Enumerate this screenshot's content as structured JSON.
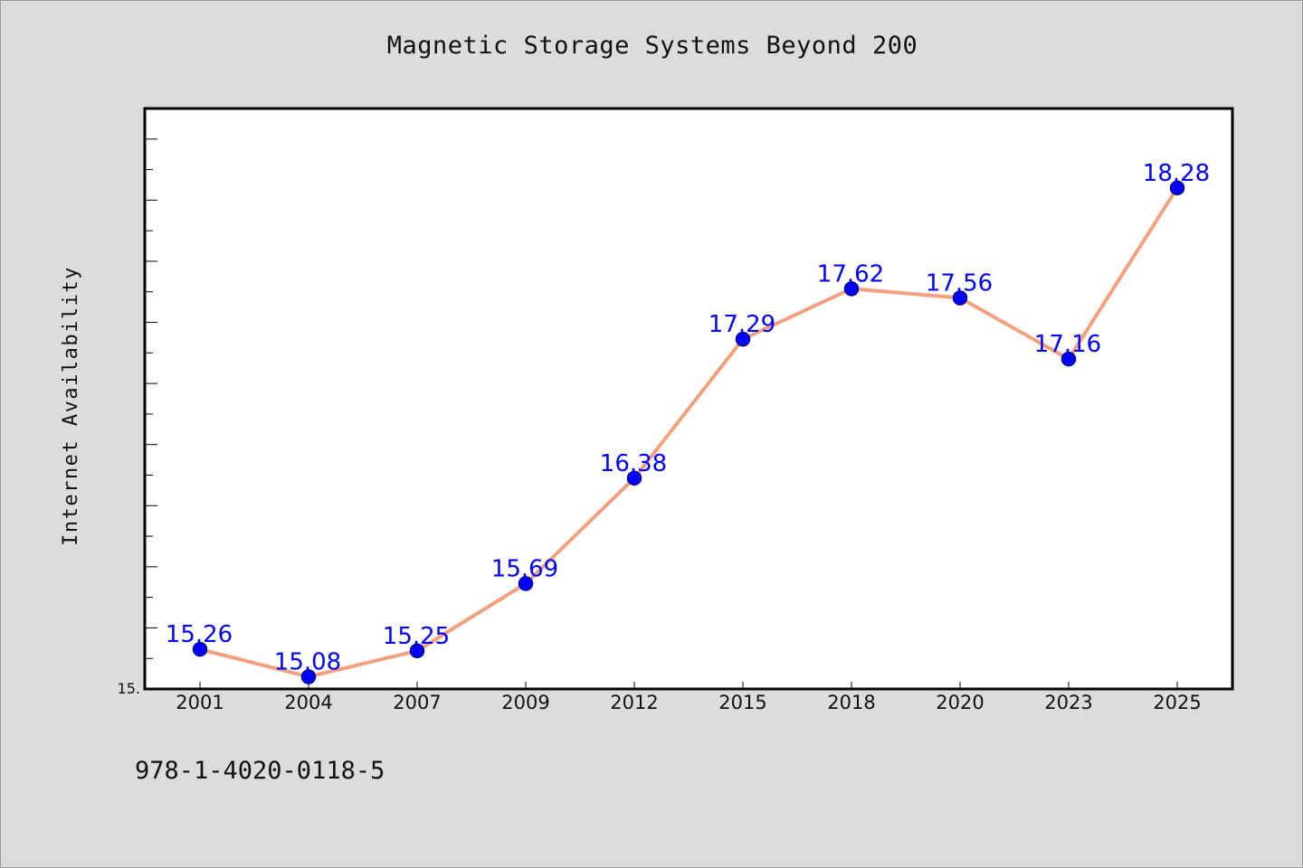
{
  "chart_data": {
    "type": "line",
    "title": "Magnetic Storage Systems Beyond 200",
    "ylabel": "Internet Availability",
    "xlabel": "",
    "categories": [
      "2001",
      "2004",
      "2007",
      "2009",
      "2012",
      "2015",
      "2018",
      "2020",
      "2023",
      "2025"
    ],
    "values": [
      15.26,
      15.08,
      15.25,
      15.69,
      16.38,
      17.29,
      17.62,
      17.56,
      17.16,
      18.28
    ],
    "data_labels": [
      "15.26",
      "15.08",
      "15.25",
      "15.69",
      "16.38",
      "17.29",
      "17.62",
      "17.56",
      "17.16",
      "18.28"
    ],
    "ylim": [
      15.0,
      18.8
    ],
    "y_tick_label": "15.",
    "show_markers": true,
    "grid": false,
    "legend": "none",
    "colors": {
      "line": "#f4a07e",
      "marker": "#0000ff",
      "marker_edge": "#00008b",
      "data_label": "#0000ff",
      "plot_background": "#ffffff",
      "figure_background": "#dcdcdc"
    }
  },
  "annotation": {
    "isbn": "978-1-4020-0118-5"
  }
}
